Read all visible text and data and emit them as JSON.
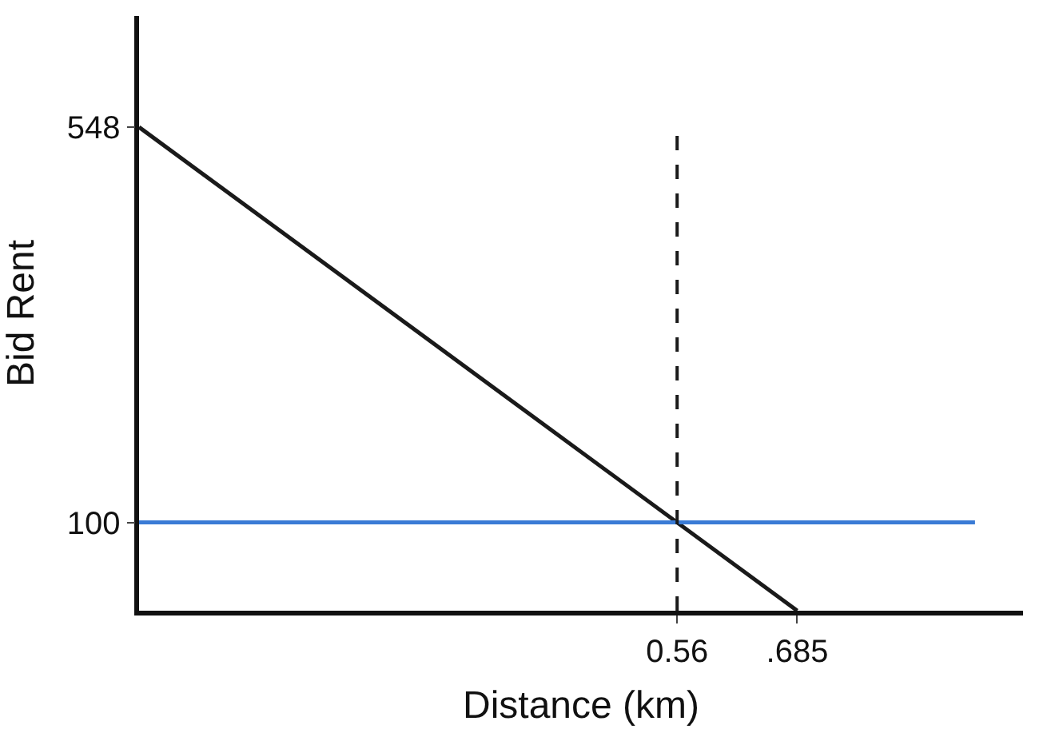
{
  "chart_data": {
    "type": "line",
    "xlabel": "Distance (km)",
    "ylabel": "Bid Rent",
    "series": [
      {
        "x": [
          0,
          0.685
        ],
        "values": [
          548,
          0
        ],
        "color": "#1a1a1a"
      },
      {
        "x": [
          0,
          0.87
        ],
        "values": [
          100,
          100
        ],
        "color": "#3a7bd5"
      }
    ],
    "xlim": [
      0,
      0.92
    ],
    "ylim": [
      0,
      674
    ],
    "xticks": [
      0.56,
      {
        "value": 0.685,
        "label": ".685"
      }
    ],
    "yticks": [
      100,
      548
    ],
    "ref_lines": [
      {
        "axis": "x",
        "value": 0.56,
        "color": "#1a1a1a",
        "line_style": "dashed"
      }
    ],
    "legend": false,
    "marker": "none",
    "line_style": "solid"
  }
}
